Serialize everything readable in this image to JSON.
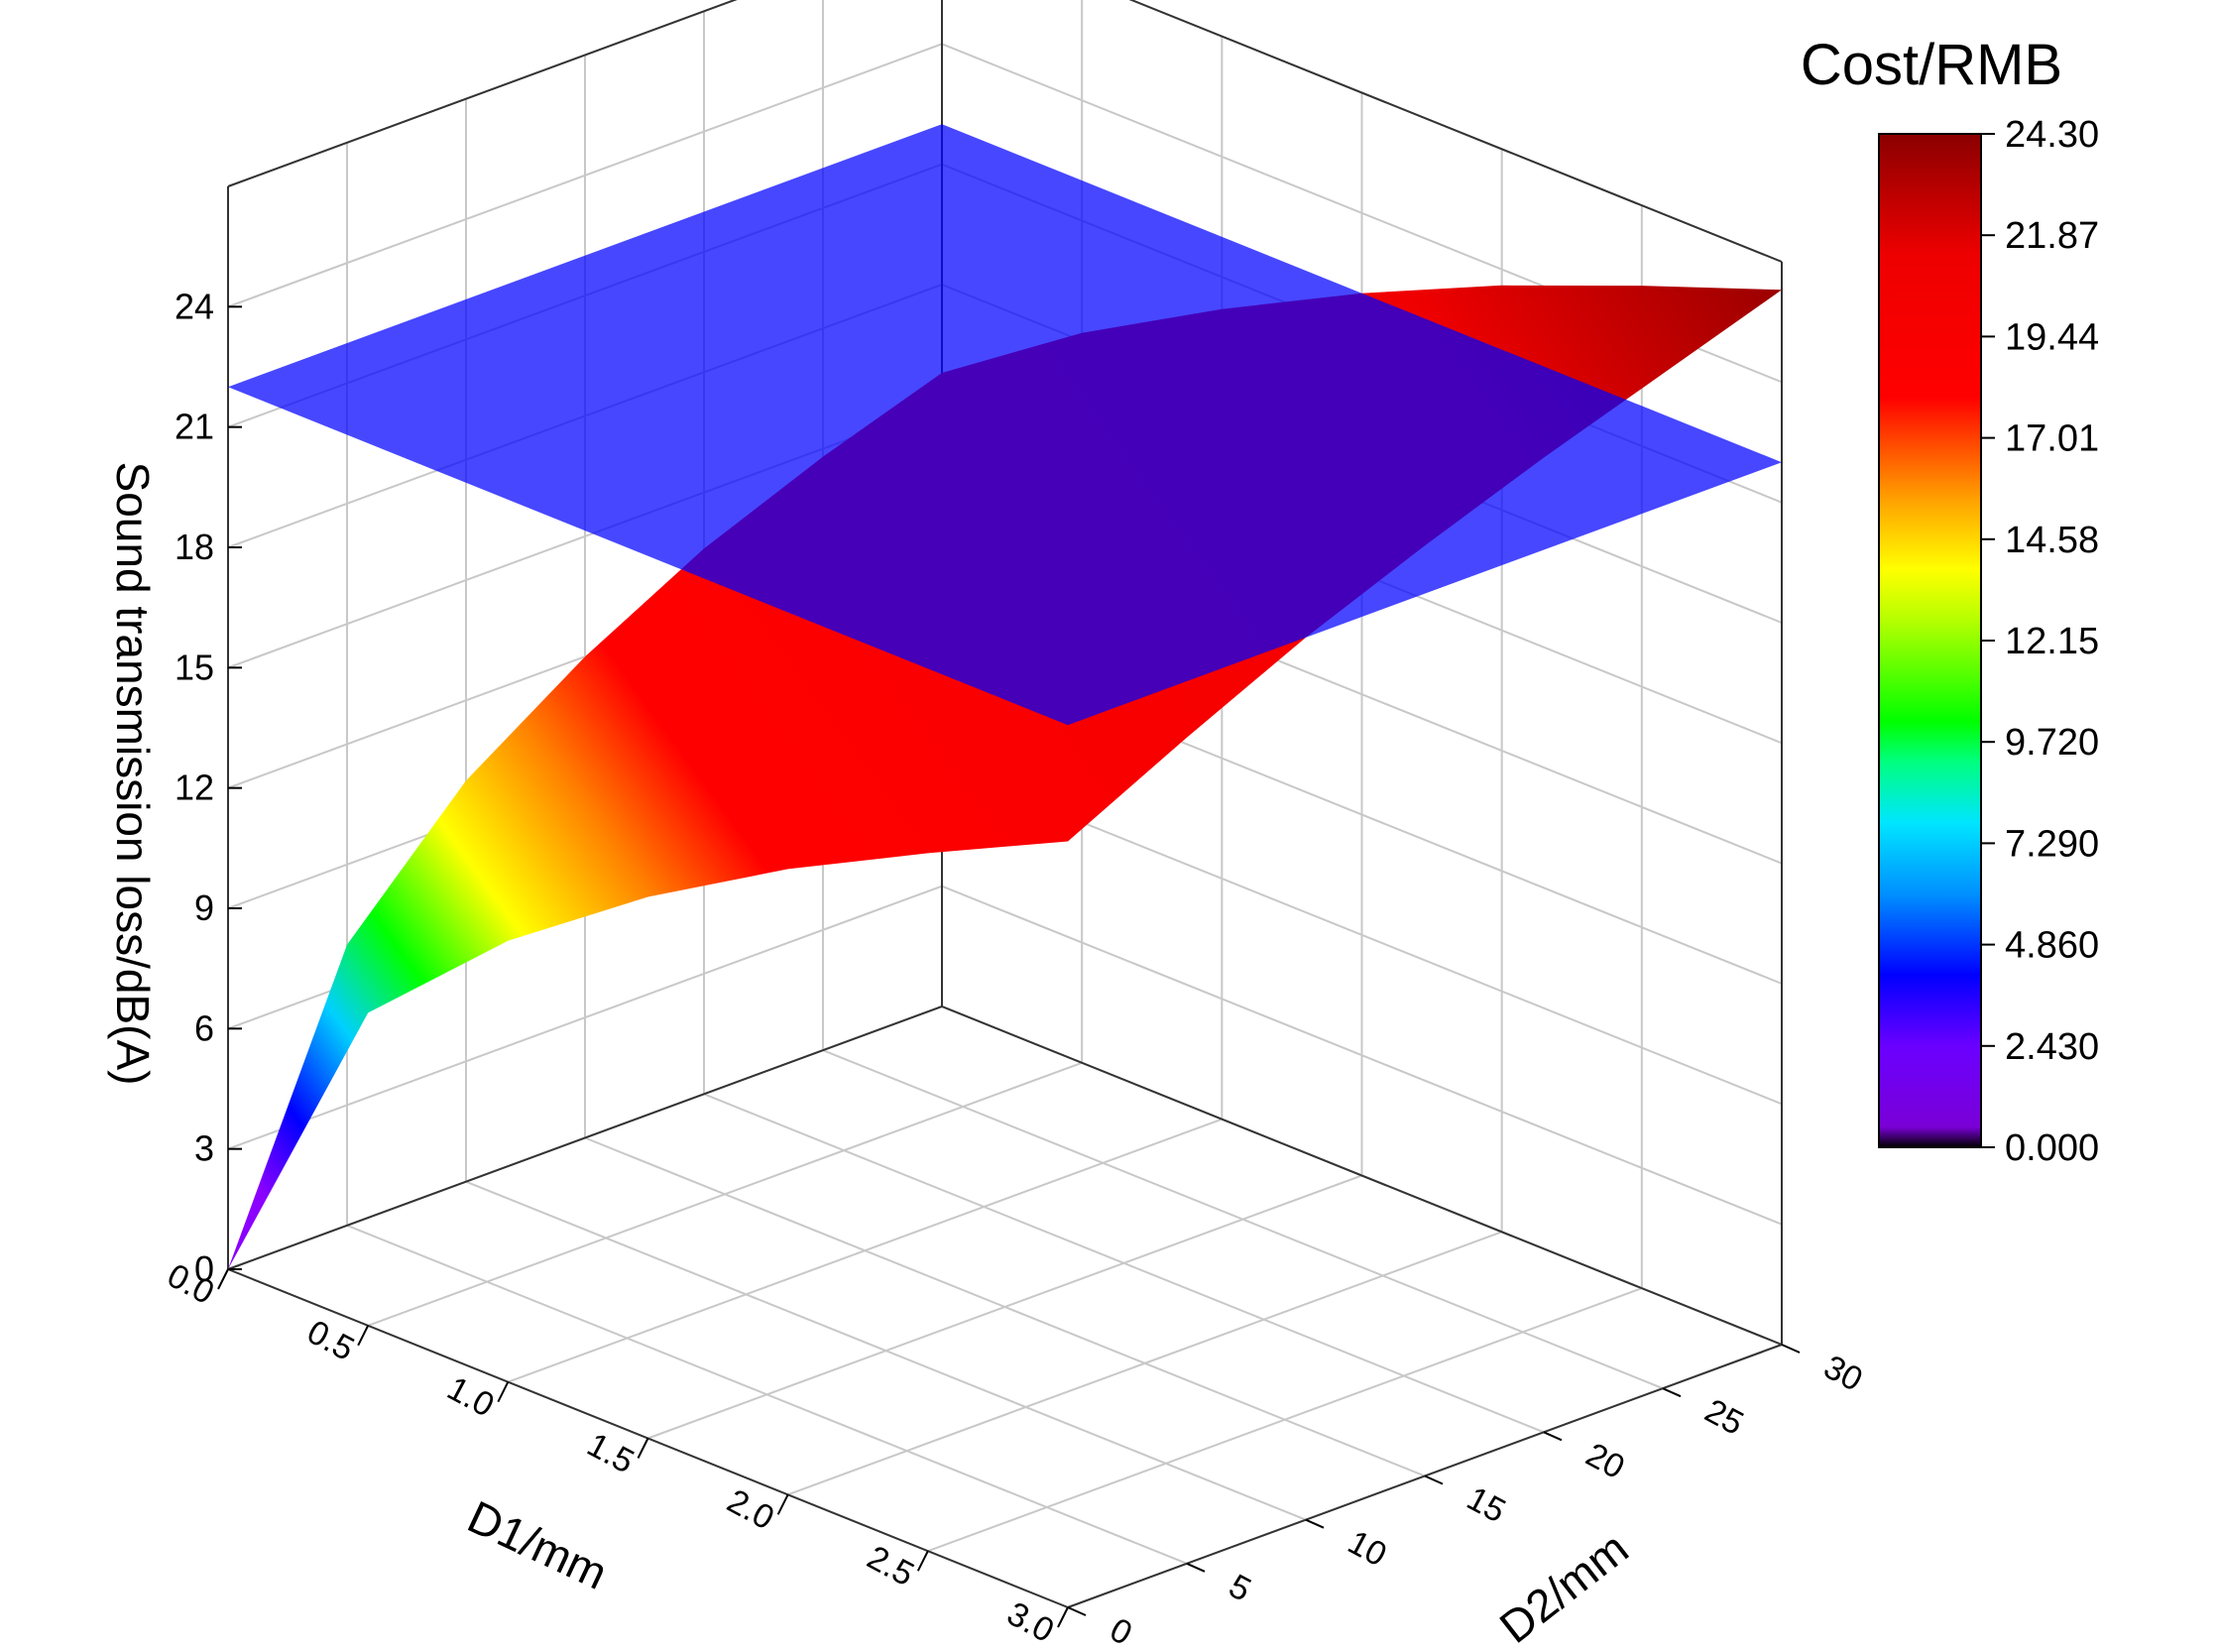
{
  "chart_data": {
    "type": "surface3d",
    "xlabel": "D1/mm",
    "ylabel": "D2/mm",
    "zlabel": "Sound transmission loss/dB(A)",
    "xlim": [
      0.0,
      3.0
    ],
    "ylim": [
      0,
      30
    ],
    "zlim": [
      0,
      27
    ],
    "x_ticks": [
      "0.0",
      "0.5",
      "1.0",
      "1.5",
      "2.0",
      "2.5",
      "3.0"
    ],
    "y_ticks": [
      "0",
      "5",
      "10",
      "15",
      "20",
      "25",
      "30"
    ],
    "z_ticks": [
      "0",
      "3",
      "6",
      "9",
      "12",
      "15",
      "18",
      "21",
      "24"
    ],
    "colorbar": {
      "title": "Cost/RMB",
      "ticks": [
        "0.000",
        "2.430",
        "4.860",
        "7.290",
        "9.720",
        "12.15",
        "14.58",
        "17.01",
        "19.44",
        "21.87",
        "24.30"
      ],
      "range": [
        0,
        24.3
      ],
      "colors": [
        "#000000",
        "#8b00ff",
        "#0000ff",
        "#00bfff",
        "#00ffff",
        "#00ff00",
        "#ffff00",
        "#ff8c00",
        "#ff0000",
        "#8b0000"
      ]
    },
    "reference_plane": {
      "z": 22,
      "color": "#0000ff"
    },
    "surface": {
      "x": [
        0.0,
        0.5,
        1.0,
        1.5,
        2.0,
        2.5,
        3.0
      ],
      "y": [
        0,
        5,
        10,
        15,
        20,
        25,
        30
      ],
      "z_approx": [
        [
          0.0,
          7.8,
          11.0,
          13.5,
          15.6,
          17.4,
          19.1
        ],
        [
          7.0,
          11.0,
          13.5,
          15.6,
          17.4,
          19.1,
          20.6
        ],
        [
          10.0,
          13.0,
          15.3,
          17.2,
          19.0,
          20.6,
          22.0
        ],
        [
          12.0,
          14.6,
          16.8,
          18.7,
          20.4,
          21.9,
          23.2
        ],
        [
          13.6,
          16.0,
          18.0,
          19.9,
          21.5,
          23.0,
          24.3
        ],
        [
          14.8,
          17.2,
          19.2,
          21.0,
          22.6,
          24.0,
          25.3
        ],
        [
          15.8,
          18.2,
          20.2,
          22.0,
          23.6,
          25.0,
          26.3
        ]
      ]
    }
  }
}
